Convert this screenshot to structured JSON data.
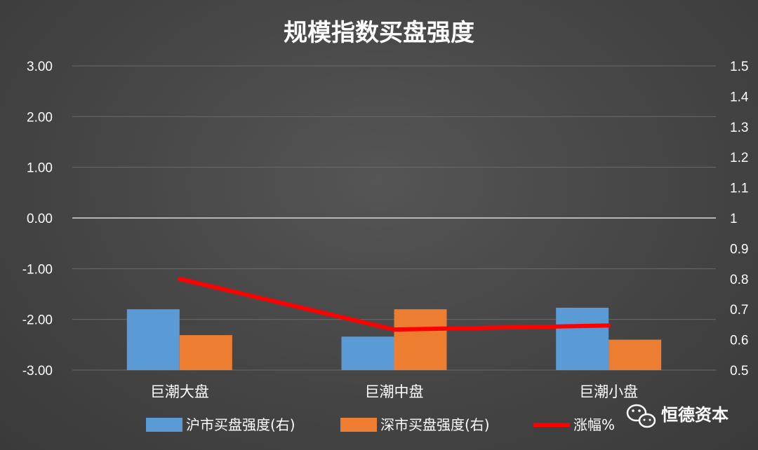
{
  "chart_data": {
    "type": "bar",
    "title": "规模指数买盘强度",
    "categories": [
      "巨潮大盘",
      "巨潮中盘",
      "巨潮小盘"
    ],
    "series": [
      {
        "name": "沪市买盘强度(右)",
        "axis": "right",
        "kind": "bar",
        "color": "#5b9bd5",
        "values": [
          0.7,
          0.61,
          0.705
        ]
      },
      {
        "name": "深市买盘强度(右)",
        "axis": "right",
        "kind": "bar",
        "color": "#ed7d31",
        "values": [
          0.615,
          0.7,
          0.6
        ]
      },
      {
        "name": "涨幅%",
        "axis": "left",
        "kind": "line",
        "color": "#ff0000",
        "values": [
          -1.2,
          -2.2,
          -2.12
        ]
      }
    ],
    "y_left": {
      "ylim": [
        -3,
        3
      ],
      "ticks": [
        "3.00",
        "2.00",
        "1.00",
        "0.00",
        "-1.00",
        "-2.00",
        "-3.00"
      ],
      "tick_values": [
        3,
        2,
        1,
        0,
        -1,
        -2,
        -3
      ]
    },
    "y_right": {
      "ylim": [
        0.5,
        1.5
      ],
      "ticks": [
        "1.5",
        "1.4",
        "1.3",
        "1.2",
        "1.1",
        "1",
        "0.9",
        "0.8",
        "0.7",
        "0.6",
        "0.5"
      ],
      "tick_values": [
        1.5,
        1.4,
        1.3,
        1.2,
        1.1,
        1,
        0.9,
        0.8,
        0.7,
        0.6,
        0.5
      ]
    },
    "grid": true,
    "legend_position": "bottom"
  },
  "watermark": {
    "text": "恒德资本",
    "icon": "wechat-icon"
  }
}
